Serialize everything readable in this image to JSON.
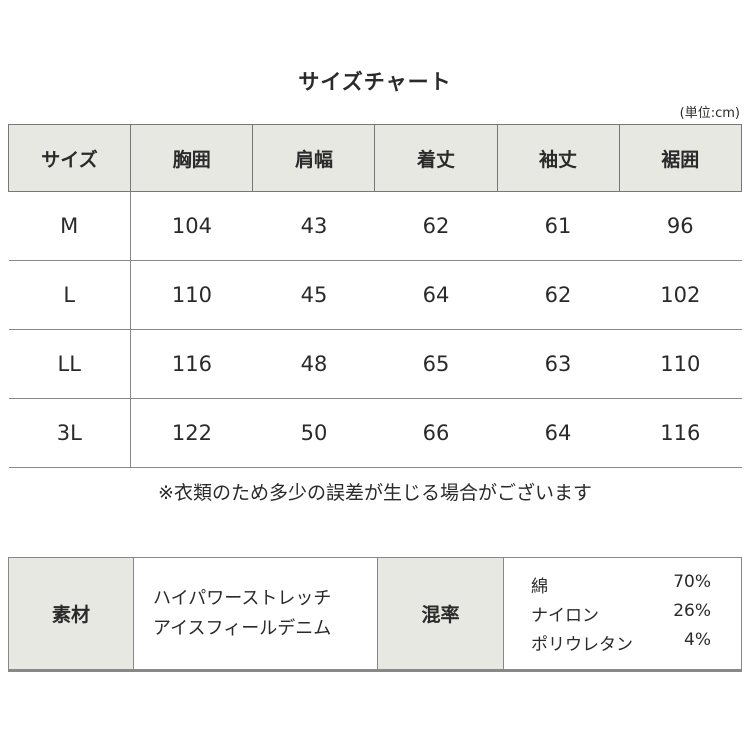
{
  "title": "サイズチャート",
  "unit": "(単位:cm)",
  "headers": [
    "サイズ",
    "胸囲",
    "肩幅",
    "着丈",
    "袖丈",
    "裾囲"
  ],
  "rows": [
    [
      "M",
      "104",
      "43",
      "62",
      "61",
      "96"
    ],
    [
      "L",
      "110",
      "45",
      "64",
      "62",
      "102"
    ],
    [
      "LL",
      "116",
      "48",
      "65",
      "63",
      "110"
    ],
    [
      "3L",
      "122",
      "50",
      "66",
      "64",
      "116"
    ]
  ],
  "note": "※衣類のため多少の誤差が生じる場合がございます",
  "material": {
    "label": "素材",
    "lines": [
      "ハイパワーストレッチ",
      "アイスフィールデニム"
    ],
    "blend_label": "混率",
    "blend": [
      {
        "name": "綿",
        "pct": "70%"
      },
      {
        "name": "ナイロン",
        "pct": "26%"
      },
      {
        "name": "ポリウレタン",
        "pct": "4%"
      }
    ]
  }
}
